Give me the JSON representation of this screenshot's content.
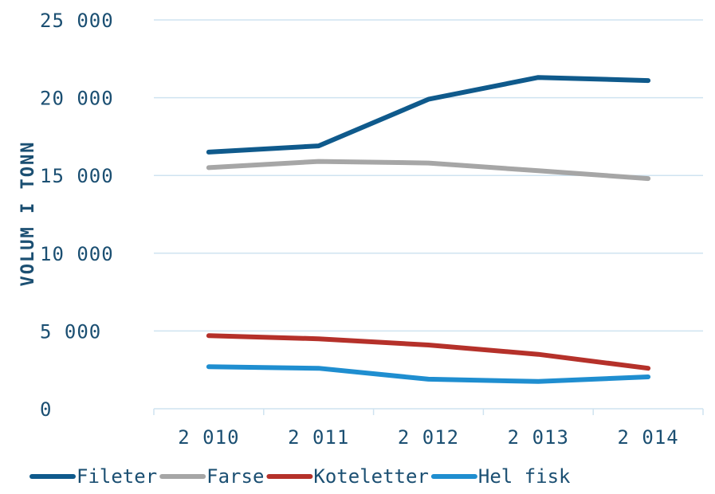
{
  "chart_data": {
    "type": "line",
    "ylabel": "VOLUM I TONN",
    "xlabel": "",
    "categories": [
      "2 010",
      "2 011",
      "2 012",
      "2 013",
      "2 014"
    ],
    "y_tick_labels": [
      "0",
      "5 000",
      "10 000",
      "15 000",
      "20 000",
      "25 000"
    ],
    "y_ticks": [
      0,
      5000,
      10000,
      15000,
      20000,
      25000
    ],
    "ylim": [
      0,
      25000
    ],
    "grid": true,
    "legend_position": "bottom",
    "series": [
      {
        "name": "Fileter",
        "color": "#0f5a8c",
        "values": [
          16500,
          16900,
          19900,
          21300,
          21100
        ]
      },
      {
        "name": "Farse",
        "color": "#a6a6a6",
        "values": [
          15500,
          15900,
          15800,
          15300,
          14800
        ]
      },
      {
        "name": "Koteletter",
        "color": "#b5312a",
        "values": [
          4700,
          4500,
          4100,
          3500,
          2600
        ]
      },
      {
        "name": "Hel fisk",
        "color": "#1f8ed0",
        "values": [
          2700,
          2600,
          1900,
          1750,
          2050
        ]
      }
    ]
  }
}
